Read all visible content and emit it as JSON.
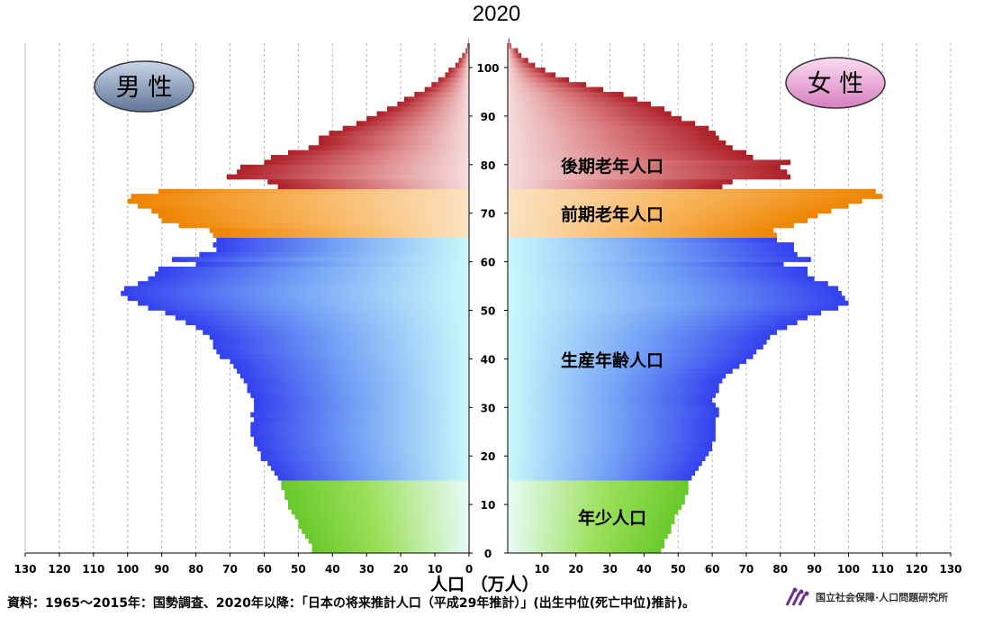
{
  "title": "2020",
  "source_note": "資料：1965～2015年：国勢調査、2020年以降：「日本の将来推計人口（平成29年推計）」(出生中位(死亡中位)推計)。",
  "logo": {
    "text": "国立社会保障·人口問題研究所"
  },
  "legend": {
    "male": "男 性",
    "female": "女 性"
  },
  "x_axis_label": "人口 （万人）",
  "colors": {
    "elderly_late": "#b3262c",
    "elderly_early": "#f28a00",
    "working": "#3a48f0",
    "youth": "#7fd13b",
    "male_badge": "#7f93b3",
    "female_badge": "#e08fc8"
  },
  "chart_data": {
    "type": "bar",
    "orientation": "horizontal",
    "subtype": "population-pyramid",
    "xlim": [
      0,
      130
    ],
    "x_ticks": [
      130,
      120,
      110,
      100,
      90,
      80,
      70,
      60,
      50,
      40,
      30,
      20,
      10,
      0,
      10,
      20,
      30,
      40,
      50,
      60,
      70,
      80,
      90,
      100,
      110,
      120,
      130
    ],
    "ylim": [
      0,
      105
    ],
    "y_ticks": [
      0,
      10,
      20,
      30,
      40,
      50,
      60,
      70,
      80,
      90,
      100
    ],
    "age_groups": [
      {
        "label": "年少人口",
        "from_age": 0,
        "to_age": 14
      },
      {
        "label": "生産年齢人口",
        "from_age": 15,
        "to_age": 64
      },
      {
        "label": "前期老年人口",
        "from_age": 65,
        "to_age": 74
      },
      {
        "label": "後期老年人口",
        "from_age": 75,
        "to_age": 105
      }
    ],
    "ages": [
      0,
      1,
      2,
      3,
      4,
      5,
      6,
      7,
      8,
      9,
      10,
      11,
      12,
      13,
      14,
      15,
      16,
      17,
      18,
      19,
      20,
      21,
      22,
      23,
      24,
      25,
      26,
      27,
      28,
      29,
      30,
      31,
      32,
      33,
      34,
      35,
      36,
      37,
      38,
      39,
      40,
      41,
      42,
      43,
      44,
      45,
      46,
      47,
      48,
      49,
      50,
      51,
      52,
      53,
      54,
      55,
      56,
      57,
      58,
      59,
      60,
      61,
      62,
      63,
      64,
      65,
      66,
      67,
      68,
      69,
      70,
      71,
      72,
      73,
      74,
      75,
      76,
      77,
      78,
      79,
      80,
      81,
      82,
      83,
      84,
      85,
      86,
      87,
      88,
      89,
      90,
      91,
      92,
      93,
      94,
      95,
      96,
      97,
      98,
      99,
      100,
      101,
      102,
      103,
      104,
      105
    ],
    "series": [
      {
        "name": "男 性",
        "values": [
          46,
          46,
          47,
          48,
          49,
          50,
          50,
          51,
          52,
          53,
          53,
          54,
          54,
          55,
          55,
          56,
          57,
          58,
          59,
          61,
          61,
          62,
          63,
          63,
          64,
          64,
          64,
          63,
          64,
          63,
          63,
          63,
          64,
          65,
          65,
          66,
          67,
          68,
          69,
          70,
          73,
          74,
          75,
          75,
          76,
          78,
          80,
          83,
          86,
          89,
          94,
          97,
          100,
          102,
          101,
          97,
          94,
          92,
          91,
          80,
          87,
          79,
          74,
          75,
          74,
          75,
          76,
          85,
          90,
          91,
          93,
          97,
          100,
          99,
          91,
          56,
          59,
          71,
          68,
          67,
          60,
          58,
          53,
          47,
          44,
          44,
          41,
          37,
          33,
          30,
          27,
          24,
          21,
          19,
          16,
          13,
          11,
          9,
          7,
          6,
          4,
          3,
          2,
          1,
          0.5,
          0.2
        ]
      },
      {
        "name": "女 性",
        "values": [
          45,
          46,
          46,
          47,
          48,
          48,
          49,
          49,
          50,
          51,
          52,
          52,
          53,
          53,
          53,
          54,
          55,
          56,
          57,
          58,
          59,
          60,
          60,
          61,
          61,
          61,
          61,
          61,
          62,
          62,
          61,
          60,
          61,
          62,
          62,
          63,
          64,
          66,
          68,
          70,
          72,
          73,
          75,
          76,
          77,
          79,
          82,
          85,
          88,
          92,
          97,
          100,
          99,
          98,
          97,
          94,
          90,
          88,
          88,
          81,
          89,
          85,
          84,
          84,
          79,
          79,
          78,
          84,
          88,
          91,
          95,
          100,
          104,
          110,
          108,
          63,
          66,
          83,
          82,
          80,
          83,
          72,
          70,
          66,
          64,
          62,
          61,
          59,
          55,
          51,
          48,
          46,
          42,
          38,
          34,
          28,
          23,
          18,
          14,
          11,
          8,
          6,
          4,
          3,
          1,
          0.5
        ]
      }
    ]
  }
}
